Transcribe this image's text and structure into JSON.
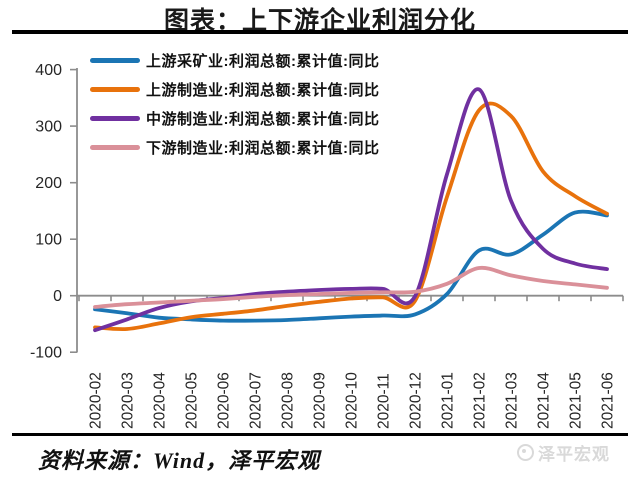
{
  "title": "图表：上下游企业利润分化",
  "source_note": "资料来源：Wind，泽平宏观",
  "watermark": "泽平宏观",
  "colors": {
    "axis": "#8c8c8c",
    "tick_label": "#262626",
    "title_text": "#1a1a1a",
    "rule": "#000000",
    "watermark_gray": "#d9d9d9"
  },
  "chart_data": {
    "type": "line",
    "title": "图表：上下游企业利润分化",
    "xlabel": "",
    "ylabel": "",
    "ylim": [
      -100,
      400
    ],
    "yticks": [
      400,
      300,
      200,
      100,
      0,
      -100
    ],
    "grid": false,
    "line_style": "smooth",
    "legend_position": "top-left-inside",
    "categories": [
      "2020-02",
      "2020-03",
      "2020-04",
      "2020-05",
      "2020-06",
      "2020-07",
      "2020-08",
      "2020-09",
      "2020-10",
      "2020-11",
      "2020-12",
      "2021-01",
      "2021-02",
      "2021-03",
      "2021-04",
      "2021-05",
      "2021-06"
    ],
    "series": [
      {
        "name": "上游采矿业:利润总额:累计值:同比",
        "color": "#1B75B4",
        "values": [
          -24,
          -31,
          -39,
          -42,
          -44,
          -44,
          -43,
          -40,
          -37,
          -35,
          -33,
          3,
          80,
          73,
          108,
          147,
          142
        ]
      },
      {
        "name": "上游制造业:利润总额:累计值:同比",
        "color": "#E8720C",
        "values": [
          -56,
          -59,
          -49,
          -38,
          -32,
          -26,
          -18,
          -11,
          -5,
          -3,
          -9,
          175,
          328,
          318,
          220,
          176,
          145
        ]
      },
      {
        "name": "中游制造业:利润总额:累计值:同比",
        "color": "#7030A0",
        "values": [
          -61,
          -42,
          -22,
          -10,
          -4,
          3,
          7,
          10,
          12,
          12,
          -1,
          215,
          365,
          168,
          83,
          57,
          47
        ]
      },
      {
        "name": "下游制造业:利润总额:累计值:同比",
        "color": "#DA9099",
        "values": [
          -20,
          -15,
          -12,
          -9,
          -6,
          -2,
          1,
          3,
          5,
          6,
          7,
          21,
          49,
          36,
          26,
          20,
          14
        ]
      }
    ]
  }
}
